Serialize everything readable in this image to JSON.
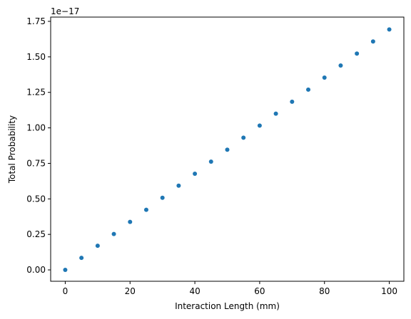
{
  "chart_data": {
    "type": "scatter",
    "xlabel": "Interaction Length (mm)",
    "ylabel": "Total Probability",
    "y_offset_label": "1e−17",
    "y_scale_exponent": -17,
    "xlim": [
      -4.5,
      104.5
    ],
    "ylim": [
      -0.08,
      1.78
    ],
    "x_ticks": [
      0,
      20,
      40,
      60,
      80,
      100
    ],
    "x_tick_labels": [
      "0",
      "20",
      "40",
      "60",
      "80",
      "100"
    ],
    "y_ticks": [
      0.0,
      0.25,
      0.5,
      0.75,
      1.0,
      1.25,
      1.5,
      1.75
    ],
    "y_tick_labels": [
      "0.00",
      "0.25",
      "0.50",
      "0.75",
      "1.00",
      "1.25",
      "1.50",
      "1.75"
    ],
    "grid": false,
    "marker_color": "#1f77b4",
    "series": [
      {
        "x": [
          0,
          5,
          10,
          15,
          20,
          25,
          30,
          35,
          40,
          45,
          50,
          55,
          60,
          65,
          70,
          75,
          80,
          85,
          90,
          95,
          100
        ],
        "y": [
          0.0,
          0.085,
          0.17,
          0.253,
          0.338,
          0.423,
          0.508,
          0.593,
          0.677,
          0.762,
          0.846,
          0.931,
          1.016,
          1.1,
          1.184,
          1.269,
          1.354,
          1.439,
          1.523,
          1.608,
          1.693
        ]
      }
    ]
  }
}
